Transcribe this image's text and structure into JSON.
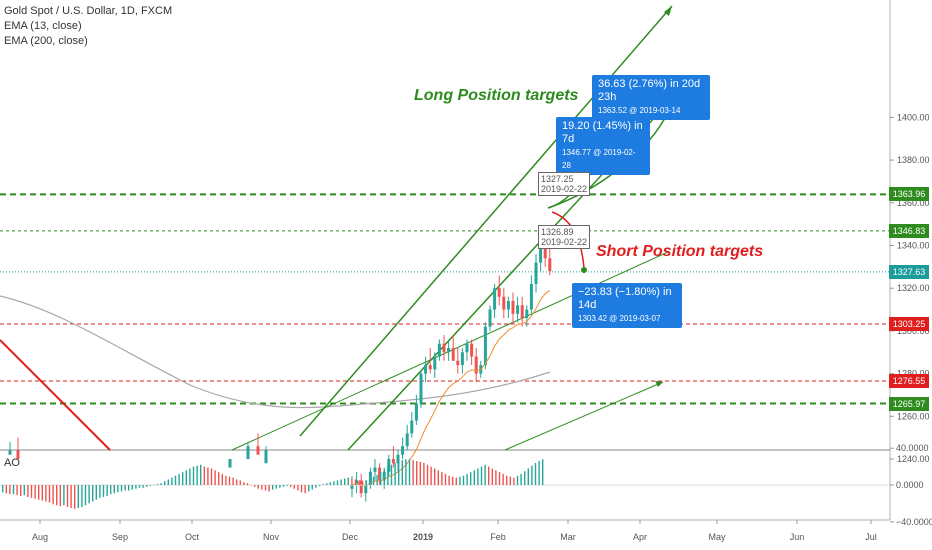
{
  "legend": {
    "symbol": "Gold Spot / U.S. Dollar, 1D, FXCM",
    "ema13": "EMA (13, close)",
    "ema200": "EMA (200, close)",
    "ao": "AO"
  },
  "colors": {
    "up": "#26a69a",
    "down": "#ef5350",
    "green_line": "#2e8b1e",
    "red_line": "#e01e1e",
    "blue": "#1e7be0",
    "ema13": "#f28c2e",
    "ema200": "#a8a8a8"
  },
  "annotations": {
    "long_title": "Long Position targets",
    "short_title": "Short Position targets",
    "callout_long2_l1": "36.63 (2.76%) in 20d 23h",
    "callout_long2_l2": "1363.52 @ 2019-03-14",
    "callout_long1_l1": "19.20 (1.45%) in 7d",
    "callout_long1_l2": "1346.77 @ 2019-02-28",
    "callout_short_l1": "−23.83 (−1.80%) in 14d",
    "callout_short_l2": "1303.42 @ 2019-03-07",
    "box_top_l1": "1327.25",
    "box_top_l2": "2019-02-22",
    "box_bot_l1": "1326.89",
    "box_bot_l2": "2019-02-22"
  },
  "price_tags": [
    {
      "label": "1363.96",
      "kind": "green"
    },
    {
      "label": "1346.83",
      "kind": "green"
    },
    {
      "label": "1327.63",
      "kind": "teal"
    },
    {
      "label": "1303.25",
      "kind": "red"
    },
    {
      "label": "1276.55",
      "kind": "red"
    },
    {
      "label": "1265.97",
      "kind": "green"
    }
  ],
  "chart_data": {
    "type": "candlestick",
    "y_ticks": [
      "1400.00",
      "1380.00",
      "1360.00",
      "1340.00",
      "1320.00",
      "1300.00",
      "1280.00",
      "1260.00",
      "1240.00"
    ],
    "ao_ticks": [
      "40.0000",
      "0.0000",
      "−40.0000"
    ],
    "x_ticks": [
      "Aug",
      "Sep",
      "Oct",
      "Nov",
      "Dec",
      "2019",
      "Feb",
      "Mar",
      "Apr",
      "May",
      "Jun",
      "Jul"
    ],
    "horizontal_levels": [
      {
        "value": 1363.96,
        "style": "green-dashed"
      },
      {
        "value": 1346.83,
        "style": "green-dotted"
      },
      {
        "value": 1327.63,
        "style": "teal-dotted"
      },
      {
        "value": 1303.25,
        "style": "red-dashed"
      },
      {
        "value": 1276.55,
        "style": "red-dashed"
      },
      {
        "value": 1265.97,
        "style": "green-dashed"
      }
    ],
    "candles_ohlc": [
      [
        1226,
        1232,
        1222,
        1228
      ],
      [
        1228,
        1234,
        1224,
        1230
      ],
      [
        1230,
        1233,
        1222,
        1224
      ],
      [
        1224,
        1230,
        1220,
        1228
      ],
      [
        1228,
        1236,
        1226,
        1234
      ],
      [
        1234,
        1240,
        1230,
        1236
      ],
      [
        1236,
        1238,
        1228,
        1230
      ],
      [
        1230,
        1236,
        1226,
        1234
      ],
      [
        1234,
        1242,
        1232,
        1240
      ],
      [
        1240,
        1246,
        1236,
        1238
      ],
      [
        1238,
        1244,
        1234,
        1242
      ],
      [
        1242,
        1250,
        1240,
        1246
      ],
      [
        1246,
        1256,
        1244,
        1252
      ],
      [
        1252,
        1262,
        1250,
        1258
      ],
      [
        1258,
        1270,
        1256,
        1266
      ],
      [
        1266,
        1282,
        1264,
        1280
      ],
      [
        1280,
        1288,
        1276,
        1284
      ],
      [
        1284,
        1292,
        1280,
        1282
      ],
      [
        1282,
        1290,
        1278,
        1288
      ],
      [
        1288,
        1296,
        1286,
        1294
      ],
      [
        1294,
        1298,
        1286,
        1290
      ],
      [
        1290,
        1296,
        1286,
        1292
      ],
      [
        1292,
        1298,
        1288,
        1286
      ],
      [
        1286,
        1292,
        1280,
        1284
      ],
      [
        1284,
        1292,
        1280,
        1290
      ],
      [
        1290,
        1296,
        1286,
        1294
      ],
      [
        1294,
        1296,
        1284,
        1288
      ],
      [
        1288,
        1292,
        1276,
        1280
      ],
      [
        1280,
        1286,
        1278,
        1284
      ],
      [
        1284,
        1304,
        1282,
        1302
      ],
      [
        1302,
        1312,
        1300,
        1310
      ],
      [
        1310,
        1322,
        1306,
        1320
      ],
      [
        1320,
        1326,
        1312,
        1316
      ],
      [
        1316,
        1320,
        1306,
        1310
      ],
      [
        1310,
        1316,
        1306,
        1314
      ],
      [
        1314,
        1318,
        1304,
        1308
      ],
      [
        1308,
        1316,
        1304,
        1312
      ],
      [
        1312,
        1316,
        1302,
        1306
      ],
      [
        1306,
        1312,
        1302,
        1310
      ],
      [
        1310,
        1326,
        1308,
        1322
      ],
      [
        1322,
        1336,
        1318,
        1332
      ],
      [
        1332,
        1346,
        1328,
        1340
      ],
      [
        1340,
        1344,
        1330,
        1334
      ],
      [
        1334,
        1340,
        1326,
        1328
      ]
    ],
    "ao_values": [
      -8,
      -9,
      -10,
      -10,
      -11,
      -12,
      -11,
      -13,
      -14,
      -15,
      -16,
      -17,
      -18,
      -19,
      -21,
      -22,
      -23,
      -22,
      -24,
      -25,
      -26,
      -25,
      -24,
      -22,
      -20,
      -18,
      -16,
      -14,
      -13,
      -12,
      -10,
      -9,
      -8,
      -7,
      -6,
      -6,
      -5,
      -4,
      -3,
      -3,
      -2,
      -1,
      0,
      1,
      2,
      4,
      6,
      8,
      10,
      12,
      14,
      16,
      18,
      20,
      21,
      22,
      20,
      19,
      18,
      16,
      14,
      12,
      10,
      9,
      8,
      6,
      5,
      3,
      2,
      0,
      -2,
      -4,
      -5,
      -6,
      -7,
      -5,
      -4,
      -3,
      -2,
      -1,
      -2,
      -4,
      -6,
      -8,
      -9,
      -7,
      -5,
      -3,
      -1,
      1,
      2,
      3,
      4,
      5,
      6,
      7,
      8,
      7,
      6,
      5,
      4,
      5,
      7,
      9,
      11,
      14,
      17,
      20,
      22,
      24,
      26,
      27,
      28,
      28,
      27,
      26,
      25,
      24,
      22,
      20,
      18,
      16,
      14,
      12,
      10,
      9,
      8,
      9,
      10,
      12,
      14,
      16,
      18,
      20,
      22,
      20,
      18,
      16,
      14,
      12,
      10,
      9,
      8,
      10,
      12,
      15,
      18,
      21,
      24,
      26,
      28
    ]
  }
}
